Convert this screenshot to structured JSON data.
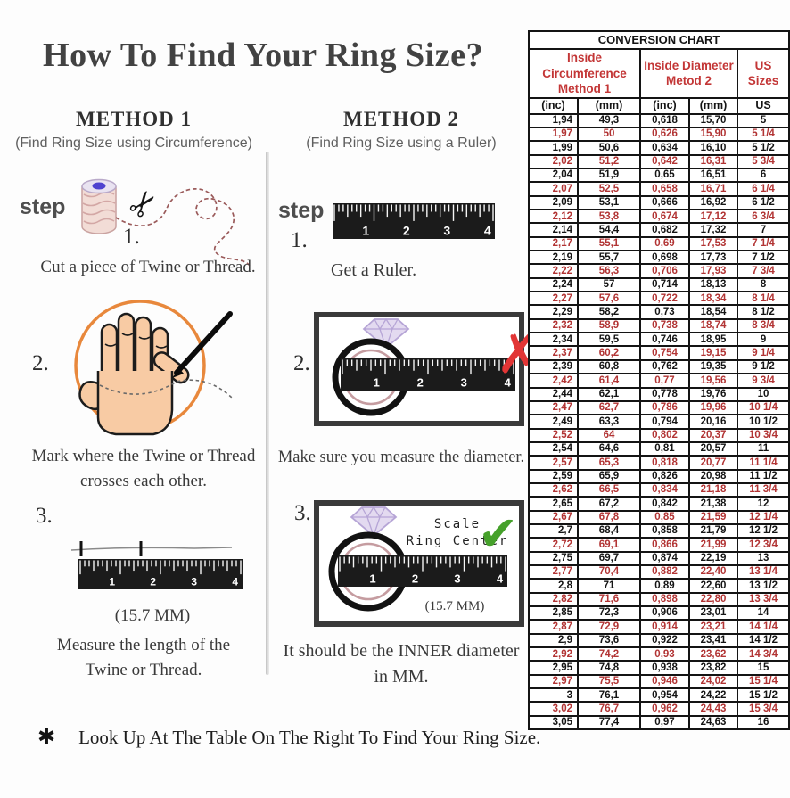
{
  "page": {
    "title": "How To Find Your Ring Size?",
    "footnote_marker": "✱",
    "footnote": "Look Up At The Table On The Right To Find Your Ring Size."
  },
  "icons": {
    "x_mark": "✗",
    "check_mark": "✔",
    "scissors": "✂"
  },
  "colors": {
    "table_alt_red": "#b23434",
    "header_red": "#c33636",
    "x_red": "#e23535",
    "check_green": "#46a12b",
    "circle_orange": "#e8883c"
  },
  "ruler": {
    "numbers": [
      "1",
      "2",
      "3",
      "4"
    ]
  },
  "method1": {
    "heading": "METHOD 1",
    "subtitle": "(Find Ring Size using Circumference)",
    "step_label": "step",
    "steps": [
      {
        "num": "1.",
        "text": "Cut a piece of Twine or Thread."
      },
      {
        "num": "2.",
        "text_line1": "Mark where the Twine or Thread",
        "text_line2": "crosses each other."
      },
      {
        "num": "3.",
        "measurement": "(15.7 MM)",
        "text_line1": "Measure the length of the",
        "text_line2": "Twine or Thread."
      }
    ]
  },
  "method2": {
    "heading": "METHOD 2",
    "subtitle": "(Find Ring Size using a Ruler)",
    "step_label": "step",
    "steps": [
      {
        "num": "1.",
        "text": "Get a Ruler."
      },
      {
        "num": "2.",
        "text": "Make sure you measure the diameter."
      },
      {
        "num": "3.",
        "scale_label_line1": "Scale",
        "scale_label_line2": "Ring Center",
        "measurement": "(15.7 MM)",
        "text_line1": "It should be the INNER diameter",
        "text_line2": "in MM."
      }
    ]
  },
  "table": {
    "title": "CONVERSION CHART",
    "group_headers": [
      {
        "line1": "Inside Circumference",
        "line2": "Method 1"
      },
      {
        "line1": "Inside Diameter",
        "line2": "Metod 2"
      },
      {
        "line1": "US Sizes",
        "line2": ""
      }
    ],
    "column_headers": [
      "(inc)",
      "(mm)",
      "(inc)",
      "(mm)",
      "US"
    ],
    "rows": [
      [
        "1,94",
        "49,3",
        "0,618",
        "15,70",
        "5"
      ],
      [
        "1,97",
        "50",
        "0,626",
        "15,90",
        "5 1/4"
      ],
      [
        "1,99",
        "50,6",
        "0,634",
        "16,10",
        "5 1/2"
      ],
      [
        "2,02",
        "51,2",
        "0,642",
        "16,31",
        "5 3/4"
      ],
      [
        "2,04",
        "51,9",
        "0,65",
        "16,51",
        "6"
      ],
      [
        "2,07",
        "52,5",
        "0,658",
        "16,71",
        "6 1/4"
      ],
      [
        "2,09",
        "53,1",
        "0,666",
        "16,92",
        "6 1/2"
      ],
      [
        "2,12",
        "53,8",
        "0,674",
        "17,12",
        "6 3/4"
      ],
      [
        "2,14",
        "54,4",
        "0,682",
        "17,32",
        "7"
      ],
      [
        "2,17",
        "55,1",
        "0,69",
        "17,53",
        "7 1/4"
      ],
      [
        "2,19",
        "55,7",
        "0,698",
        "17,73",
        "7 1/2"
      ],
      [
        "2,22",
        "56,3",
        "0,706",
        "17,93",
        "7 3/4"
      ],
      [
        "2,24",
        "57",
        "0,714",
        "18,13",
        "8"
      ],
      [
        "2,27",
        "57,6",
        "0,722",
        "18,34",
        "8 1/4"
      ],
      [
        "2,29",
        "58,2",
        "0,73",
        "18,54",
        "8 1/2"
      ],
      [
        "2,32",
        "58,9",
        "0,738",
        "18,74",
        "8 3/4"
      ],
      [
        "2,34",
        "59,5",
        "0,746",
        "18,95",
        "9"
      ],
      [
        "2,37",
        "60,2",
        "0,754",
        "19,15",
        "9 1/4"
      ],
      [
        "2,39",
        "60,8",
        "0,762",
        "19,35",
        "9 1/2"
      ],
      [
        "2,42",
        "61,4",
        "0,77",
        "19,56",
        "9 3/4"
      ],
      [
        "2,44",
        "62,1",
        "0,778",
        "19,76",
        "10"
      ],
      [
        "2,47",
        "62,7",
        "0,786",
        "19,96",
        "10 1/4"
      ],
      [
        "2,49",
        "63,3",
        "0,794",
        "20,16",
        "10 1/2"
      ],
      [
        "2,52",
        "64",
        "0,802",
        "20,37",
        "10 3/4"
      ],
      [
        "2,54",
        "64,6",
        "0,81",
        "20,57",
        "11"
      ],
      [
        "2,57",
        "65,3",
        "0,818",
        "20,77",
        "11 1/4"
      ],
      [
        "2,59",
        "65,9",
        "0,826",
        "20,98",
        "11 1/2"
      ],
      [
        "2,62",
        "66,5",
        "0,834",
        "21,18",
        "11 3/4"
      ],
      [
        "2,65",
        "67,2",
        "0,842",
        "21,38",
        "12"
      ],
      [
        "2,67",
        "67,8",
        "0,85",
        "21,59",
        "12 1/4"
      ],
      [
        "2,7",
        "68,4",
        "0,858",
        "21,79",
        "12 1/2"
      ],
      [
        "2,72",
        "69,1",
        "0,866",
        "21,99",
        "12 3/4"
      ],
      [
        "2,75",
        "69,7",
        "0,874",
        "22,19",
        "13"
      ],
      [
        "2,77",
        "70,4",
        "0,882",
        "22,40",
        "13 1/4"
      ],
      [
        "2,8",
        "71",
        "0,89",
        "22,60",
        "13 1/2"
      ],
      [
        "2,82",
        "71,6",
        "0,898",
        "22,80",
        "13 3/4"
      ],
      [
        "2,85",
        "72,3",
        "0,906",
        "23,01",
        "14"
      ],
      [
        "2,87",
        "72,9",
        "0,914",
        "23,21",
        "14 1/4"
      ],
      [
        "2,9",
        "73,6",
        "0,922",
        "23,41",
        "14 1/2"
      ],
      [
        "2,92",
        "74,2",
        "0,93",
        "23,62",
        "14 3/4"
      ],
      [
        "2,95",
        "74,8",
        "0,938",
        "23,82",
        "15"
      ],
      [
        "2,97",
        "75,5",
        "0,946",
        "24,02",
        "15 1/4"
      ],
      [
        "3",
        "76,1",
        "0,954",
        "24,22",
        "15 1/2"
      ],
      [
        "3,02",
        "76,7",
        "0,962",
        "24,43",
        "15 3/4"
      ],
      [
        "3,05",
        "77,4",
        "0,97",
        "24,63",
        "16"
      ]
    ]
  }
}
